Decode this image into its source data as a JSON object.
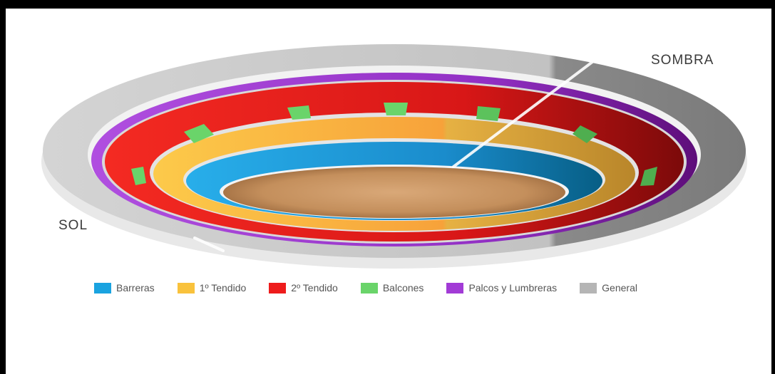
{
  "labels": {
    "shadow": "SOMBRA",
    "sun": "SOL"
  },
  "legend": [
    {
      "name": "Barreras",
      "color": "#1aa3e0"
    },
    {
      "name": "1º Tendido",
      "color": "#f9c23c"
    },
    {
      "name": "2º Tendido",
      "color": "#ee1c1c"
    },
    {
      "name": "Balcones",
      "color": "#6ad46a"
    },
    {
      "name": "Palcos y Lumbreras",
      "color": "#a23bd6"
    },
    {
      "name": "General",
      "color": "#b5b5b5"
    }
  ]
}
